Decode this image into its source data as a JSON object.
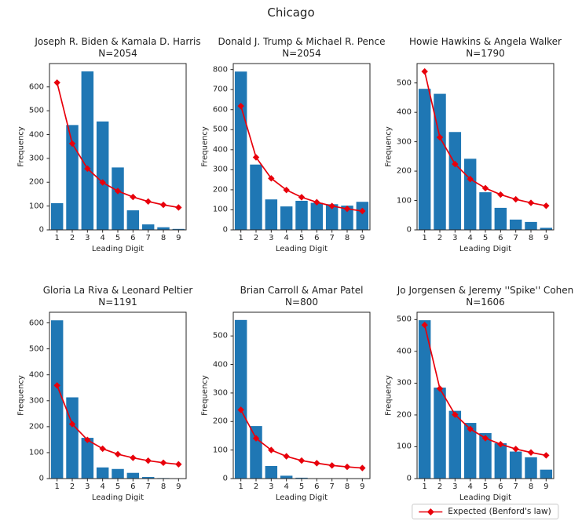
{
  "figure": {
    "suptitle": "Chicago",
    "colors": {
      "bar": "#1f77b4",
      "line": "#e8000b",
      "text": "#1f1f1f",
      "spine": "#262626",
      "background": "#ffffff"
    }
  },
  "legend": {
    "label": "Expected (Benford's law)"
  },
  "chart_data": [
    {
      "type": "bar",
      "title": "Joseph R. Biden & Kamala D. Harris",
      "n_label": "N=2054",
      "xlabel": "Leading Digit",
      "ylabel": "Frequency",
      "categories": [
        "1",
        "2",
        "3",
        "4",
        "5",
        "6",
        "7",
        "8",
        "9"
      ],
      "series": [
        {
          "type": "bar",
          "values": [
            112,
            440,
            665,
            455,
            262,
            82,
            23,
            11,
            4
          ]
        },
        {
          "type": "line",
          "label": "Expected (Benford's law)",
          "values": [
            618,
            362,
            257,
            199,
            163,
            138,
            119,
            105,
            94
          ]
        }
      ],
      "ylim": [
        0,
        698
      ],
      "yticks": [
        0,
        100,
        200,
        300,
        400,
        500,
        600
      ],
      "grid": false
    },
    {
      "type": "bar",
      "title": "Donald J. Trump & Michael R. Pence",
      "n_label": "N=2054",
      "xlabel": "Leading Digit",
      "ylabel": "Frequency",
      "categories": [
        "1",
        "2",
        "3",
        "4",
        "5",
        "6",
        "7",
        "8",
        "9"
      ],
      "series": [
        {
          "type": "bar",
          "values": [
            790,
            326,
            152,
            117,
            145,
            135,
            128,
            121,
            140
          ]
        },
        {
          "type": "line",
          "label": "Expected (Benford's law)",
          "values": [
            618,
            362,
            257,
            199,
            163,
            138,
            119,
            105,
            94
          ]
        }
      ],
      "ylim": [
        0,
        830
      ],
      "yticks": [
        0,
        100,
        200,
        300,
        400,
        500,
        600,
        700,
        800
      ],
      "grid": false
    },
    {
      "type": "bar",
      "title": "Howie Hawkins & Angela Walker",
      "n_label": "N=1790",
      "xlabel": "Leading Digit",
      "ylabel": "Frequency",
      "categories": [
        "1",
        "2",
        "3",
        "4",
        "5",
        "6",
        "7",
        "8",
        "9"
      ],
      "series": [
        {
          "type": "bar",
          "values": [
            480,
            463,
            333,
            242,
            128,
            75,
            35,
            27,
            7
          ]
        },
        {
          "type": "line",
          "label": "Expected (Benford's law)",
          "values": [
            539,
            315,
            224,
            173,
            142,
            120,
            104,
            92,
            82
          ]
        }
      ],
      "ylim": [
        0,
        566
      ],
      "yticks": [
        0,
        100,
        200,
        300,
        400,
        500
      ],
      "grid": false
    },
    {
      "type": "bar",
      "title": "Gloria La Riva & Leonard Peltier",
      "n_label": "N=1191",
      "xlabel": "Leading Digit",
      "ylabel": "Frequency",
      "categories": [
        "1",
        "2",
        "3",
        "4",
        "5",
        "6",
        "7",
        "8",
        "9"
      ],
      "series": [
        {
          "type": "bar",
          "values": [
            610,
            313,
            157,
            43,
            37,
            22,
            6,
            2,
            1
          ]
        },
        {
          "type": "line",
          "label": "Expected (Benford's law)",
          "values": [
            359,
            210,
            149,
            115,
            94,
            80,
            69,
            61,
            55
          ]
        }
      ],
      "ylim": [
        0,
        641
      ],
      "yticks": [
        0,
        100,
        200,
        300,
        400,
        500,
        600
      ],
      "grid": false
    },
    {
      "type": "bar",
      "title": "Brian Carroll & Amar Patel",
      "n_label": "N=800",
      "xlabel": "Leading Digit",
      "ylabel": "Frequency",
      "categories": [
        "1",
        "2",
        "3",
        "4",
        "5",
        "6",
        "7",
        "8",
        "9"
      ],
      "series": [
        {
          "type": "bar",
          "values": [
            556,
            184,
            44,
            10,
            3,
            1,
            1,
            0,
            1
          ]
        },
        {
          "type": "line",
          "label": "Expected (Benford's law)",
          "values": [
            241,
            141,
            100,
            78,
            63,
            54,
            46,
            41,
            37
          ]
        }
      ],
      "ylim": [
        0,
        583
      ],
      "yticks": [
        0,
        100,
        200,
        300,
        400,
        500
      ],
      "grid": false
    },
    {
      "type": "bar",
      "title": "Jo Jorgensen & Jeremy ''Spike'' Cohen",
      "n_label": "N=1606",
      "xlabel": "Leading Digit",
      "ylabel": "Frequency",
      "categories": [
        "1",
        "2",
        "3",
        "4",
        "5",
        "6",
        "7",
        "8",
        "9"
      ],
      "series": [
        {
          "type": "bar",
          "values": [
            498,
            286,
            213,
            175,
            143,
            111,
            85,
            67,
            28
          ]
        },
        {
          "type": "line",
          "label": "Expected (Benford's law)",
          "values": [
            483,
            283,
            201,
            156,
            127,
            108,
            93,
            82,
            73
          ]
        }
      ],
      "ylim": [
        0,
        523
      ],
      "yticks": [
        0,
        100,
        200,
        300,
        400,
        500
      ],
      "grid": false
    }
  ]
}
